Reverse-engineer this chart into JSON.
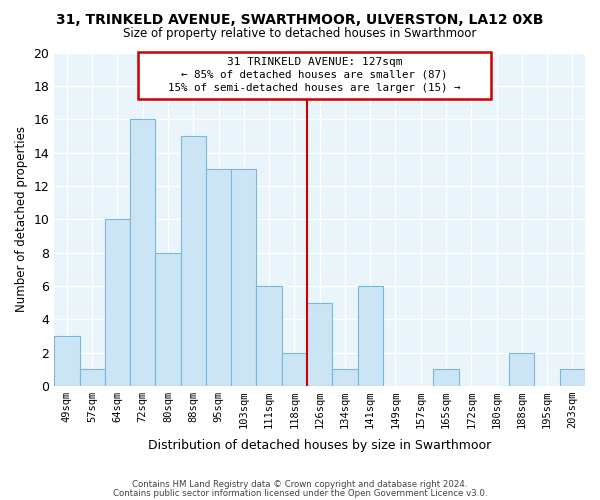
{
  "title": "31, TRINKELD AVENUE, SWARTHMOOR, ULVERSTON, LA12 0XB",
  "subtitle": "Size of property relative to detached houses in Swarthmoor",
  "xlabel": "Distribution of detached houses by size in Swarthmoor",
  "ylabel": "Number of detached properties",
  "bar_labels": [
    "49sqm",
    "57sqm",
    "64sqm",
    "72sqm",
    "80sqm",
    "88sqm",
    "95sqm",
    "103sqm",
    "111sqm",
    "118sqm",
    "126sqm",
    "134sqm",
    "141sqm",
    "149sqm",
    "157sqm",
    "165sqm",
    "172sqm",
    "180sqm",
    "188sqm",
    "195sqm",
    "203sqm"
  ],
  "bar_values": [
    3,
    1,
    10,
    16,
    8,
    15,
    13,
    13,
    6,
    2,
    5,
    1,
    6,
    0,
    0,
    1,
    0,
    0,
    2,
    0,
    1
  ],
  "bar_color": "#cce5f5",
  "bar_edge_color": "#7ab8d9",
  "vline_color": "#cc0000",
  "annotation_title": "31 TRINKELD AVENUE: 127sqm",
  "annotation_line1": "← 85% of detached houses are smaller (87)",
  "annotation_line2": "15% of semi-detached houses are larger (15) →",
  "annotation_box_color": "#ffffff",
  "annotation_box_edge": "#cc0000",
  "ylim": [
    0,
    20
  ],
  "yticks": [
    0,
    2,
    4,
    6,
    8,
    10,
    12,
    14,
    16,
    18,
    20
  ],
  "footer1": "Contains HM Land Registry data © Crown copyright and database right 2024.",
  "footer2": "Contains public sector information licensed under the Open Government Licence v3.0.",
  "background_color": "#ffffff",
  "plot_bg_color": "#eaf4fb",
  "grid_color": "#ffffff"
}
